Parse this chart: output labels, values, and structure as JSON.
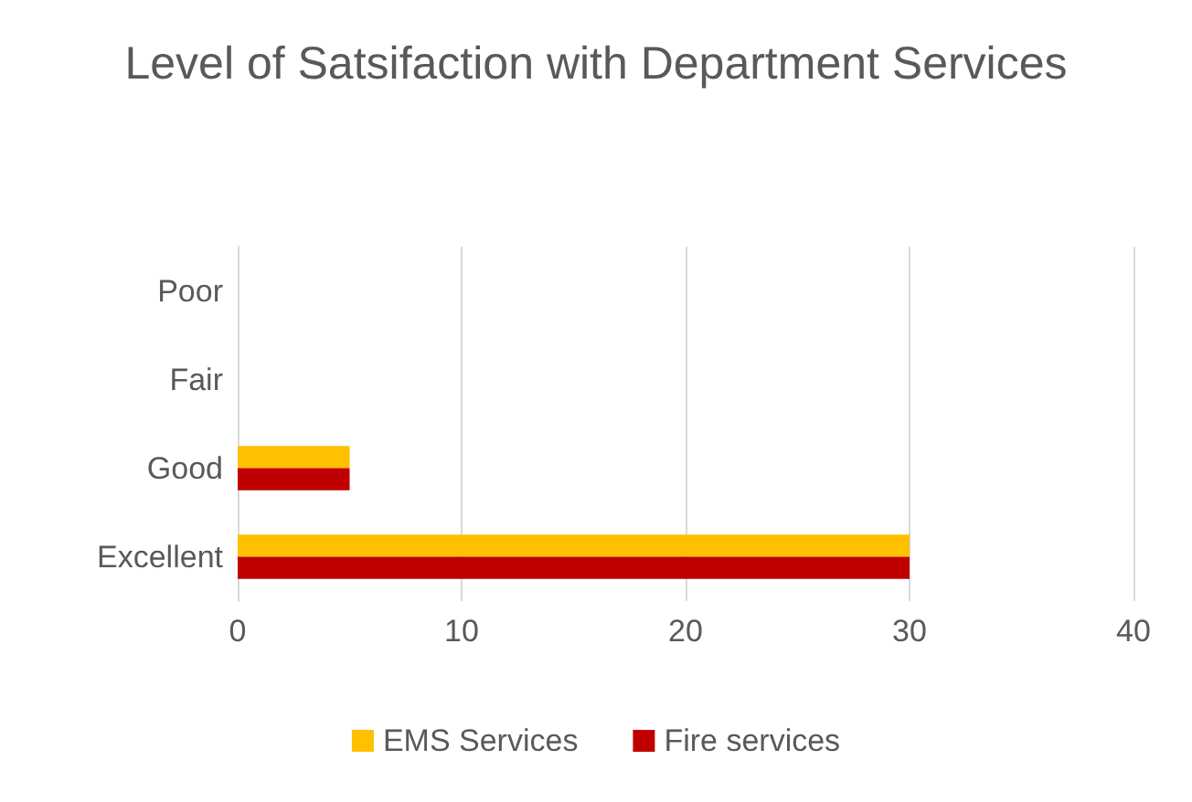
{
  "chart_data": {
    "type": "bar",
    "title": "Level of Satsifaction with Department Services",
    "orientation": "horizontal",
    "categories": [
      "Poor",
      "Fair",
      "Good",
      "Excellent"
    ],
    "series": [
      {
        "name": "EMS Services",
        "color": "#ffc000",
        "values": [
          0,
          0,
          5,
          30
        ]
      },
      {
        "name": "Fire services",
        "color": "#c00000",
        "values": [
          0,
          0,
          5,
          30
        ]
      }
    ],
    "xlim": [
      0,
      40
    ],
    "xticks": [
      0,
      10,
      20,
      30,
      40
    ],
    "grid": "x",
    "legend": "bottom"
  }
}
